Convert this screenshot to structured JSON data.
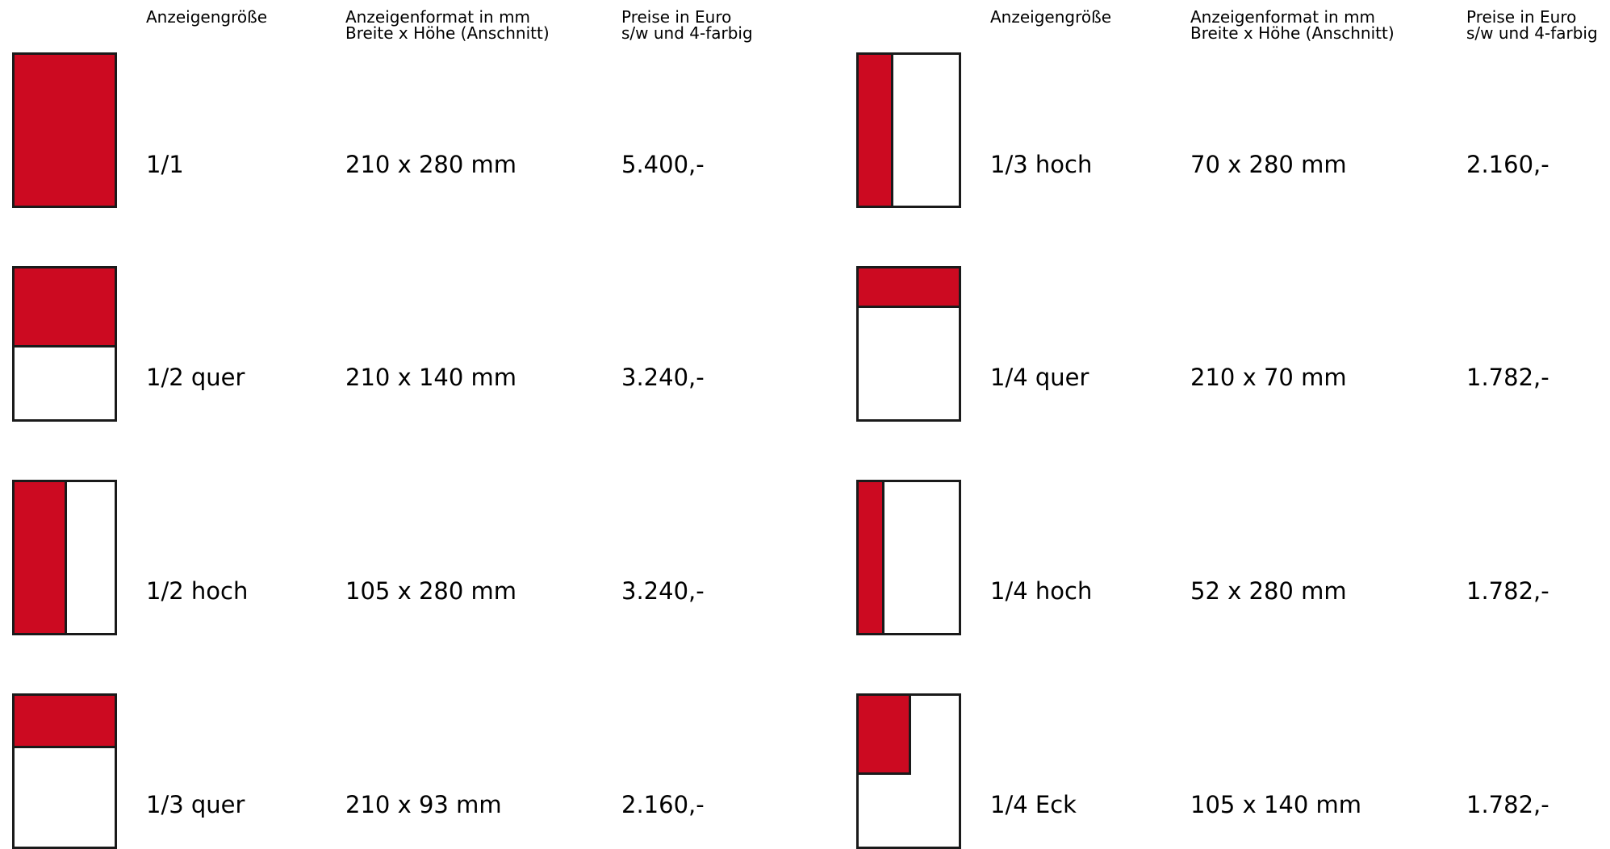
{
  "headers": {
    "size": "Anzeigengröße",
    "format": "Anzeigenformat in mm\nBreite x Höhe (Anschnitt)",
    "price": "Preise in Euro\ns/w und 4-farbig"
  },
  "left_rows": [
    {
      "size": "1/1",
      "format": "210 x 280 mm",
      "price": "5.400,-",
      "diagram": "full"
    },
    {
      "size": "1/2 quer",
      "format": "210 x 140 mm",
      "price": "3.240,-",
      "diagram": "top-half"
    },
    {
      "size": "1/2 hoch",
      "format": "105 x 280 mm",
      "price": "3.240,-",
      "diagram": "left-half"
    },
    {
      "size": "1/3 quer",
      "format": "210 x 93 mm",
      "price": "2.160,-",
      "diagram": "top-third"
    }
  ],
  "right_rows": [
    {
      "size": "1/3 hoch",
      "format": "70 x 280 mm",
      "price": "2.160,-",
      "diagram": "left-third"
    },
    {
      "size": "1/4 quer",
      "format": "210 x 70 mm",
      "price": "1.782,-",
      "diagram": "top-quarter"
    },
    {
      "size": "1/4 hoch",
      "format": "52 x 280 mm",
      "price": "1.782,-",
      "diagram": "left-quarter"
    },
    {
      "size": "1/4 Eck",
      "format": "105 x 140 mm",
      "price": "1.782,-",
      "diagram": "corner"
    }
  ],
  "colors": {
    "accent": "#cc0a21",
    "outline": "#1a1a1a"
  }
}
